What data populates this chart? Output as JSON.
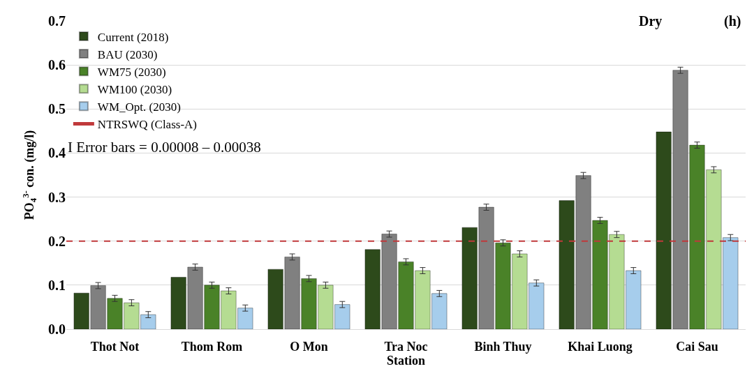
{
  "chart_data": {
    "type": "bar",
    "xlabel": "Station",
    "ylabel": "PO$_{4}$$^{3-}$ con. (mg/l)",
    "categories": [
      "Thot Not",
      "Thom Rom",
      "O Mon",
      "Tra Noc",
      "Binh Thuy",
      "Khai Luong",
      "Cai Sau"
    ],
    "series": [
      {
        "name": "Current (2018)",
        "color": "#2d4a1b",
        "values": [
          0.082,
          0.118,
          0.136,
          0.181,
          0.231,
          0.292,
          0.448
        ]
      },
      {
        "name": "BAU (2030)",
        "color": "#808080",
        "values": [
          0.099,
          0.141,
          0.164,
          0.216,
          0.277,
          0.349,
          0.588
        ],
        "errors": [
          0.007,
          0.007,
          0.007,
          0.007,
          0.007,
          0.007,
          0.007
        ]
      },
      {
        "name": "WM75 (2030)",
        "color": "#4a8228",
        "values": [
          0.07,
          0.1,
          0.115,
          0.153,
          0.196,
          0.247,
          0.418
        ],
        "errors": [
          0.007,
          0.007,
          0.007,
          0.007,
          0.007,
          0.007,
          0.007
        ]
      },
      {
        "name": "WM100 (2030)",
        "color": "#b5dc92",
        "values": [
          0.06,
          0.087,
          0.1,
          0.133,
          0.171,
          0.215,
          0.362
        ],
        "errors": [
          0.007,
          0.007,
          0.007,
          0.007,
          0.007,
          0.007,
          0.007
        ]
      },
      {
        "name": "WM_Opt. (2030)",
        "color": "#a6cdec",
        "values": [
          0.033,
          0.048,
          0.056,
          0.081,
          0.105,
          0.133,
          0.208
        ],
        "errors": [
          0.007,
          0.007,
          0.007,
          0.007,
          0.007,
          0.007,
          0.007
        ]
      }
    ],
    "ref_lines": [
      {
        "axis": "y",
        "value": 0.2,
        "label": "NTRSWQ (Class-A)",
        "color": "#c0393b",
        "line_style": "dashed"
      }
    ],
    "annotations": [
      "Dry",
      "(h)",
      "I Error bars = 0.00008 – 0.00038"
    ],
    "ylim": [
      0,
      0.7
    ],
    "yticks": [
      "0.0",
      0.1,
      0.2,
      0.3,
      0.4,
      0.5,
      0.6,
      0.7
    ],
    "grid": "y",
    "legend": "top left"
  }
}
